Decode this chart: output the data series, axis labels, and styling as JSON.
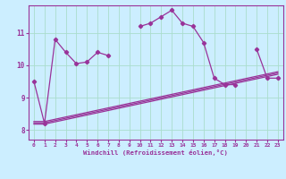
{
  "xlabel": "Windchill (Refroidissement éolien,°C)",
  "bg_color": "#cceeff",
  "line_color": "#993399",
  "grid_color": "#aaddcc",
  "x_data": [
    0,
    1,
    2,
    3,
    4,
    5,
    6,
    7,
    8,
    9,
    10,
    11,
    12,
    13,
    14,
    15,
    16,
    17,
    18,
    19,
    20,
    21,
    22,
    23
  ],
  "y_main": [
    9.5,
    8.2,
    10.8,
    10.4,
    10.05,
    10.1,
    10.4,
    10.3,
    null,
    null,
    11.2,
    11.3,
    11.5,
    11.7,
    11.3,
    11.2,
    10.7,
    9.6,
    9.4,
    9.4,
    null,
    10.5,
    9.6,
    9.6
  ],
  "y_line1": [
    8.18,
    8.18,
    8.25,
    8.32,
    8.39,
    8.46,
    8.53,
    8.6,
    8.67,
    8.74,
    8.81,
    8.88,
    8.95,
    9.02,
    9.09,
    9.16,
    9.23,
    9.3,
    9.37,
    9.44,
    9.51,
    9.58,
    9.65,
    9.72
  ],
  "y_line2": [
    8.22,
    8.22,
    8.29,
    8.36,
    8.43,
    8.5,
    8.57,
    8.64,
    8.71,
    8.78,
    8.85,
    8.92,
    8.99,
    9.06,
    9.13,
    9.2,
    9.27,
    9.34,
    9.41,
    9.48,
    9.55,
    9.62,
    9.69,
    9.76
  ],
  "y_line3": [
    8.26,
    8.26,
    8.33,
    8.4,
    8.47,
    8.54,
    8.61,
    8.68,
    8.75,
    8.82,
    8.89,
    8.96,
    9.03,
    9.1,
    9.17,
    9.24,
    9.31,
    9.38,
    9.45,
    9.52,
    9.59,
    9.66,
    9.73,
    9.8
  ],
  "ylim": [
    7.7,
    11.85
  ],
  "xlim": [
    -0.5,
    23.5
  ],
  "yticks": [
    8,
    9,
    10,
    11
  ],
  "fig_width": 3.2,
  "fig_height": 2.0,
  "dpi": 100
}
